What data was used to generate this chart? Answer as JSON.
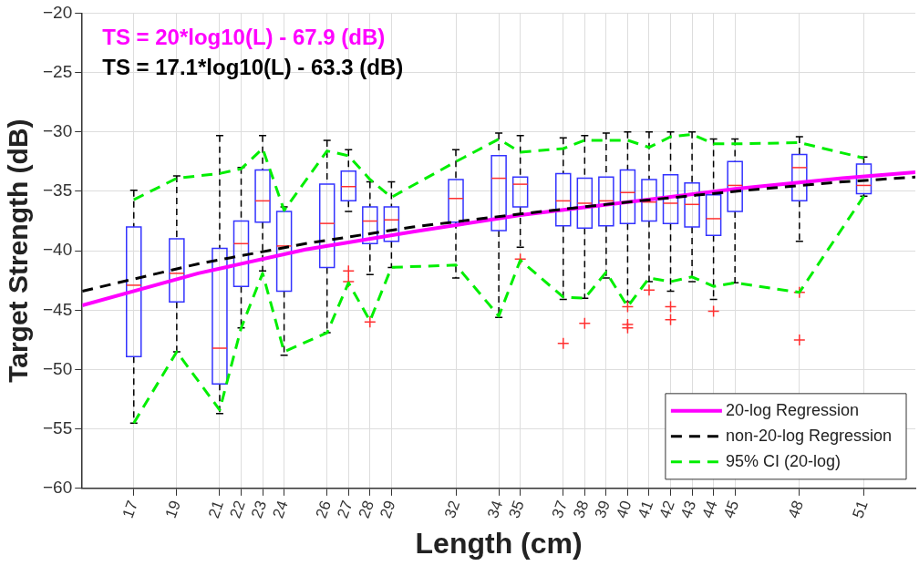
{
  "chart_data": {
    "type": "box",
    "xlabel": "Length (cm)",
    "ylabel": "Target Strength (dB)",
    "x": [
      17,
      19,
      21,
      22,
      23,
      24,
      26,
      27,
      28,
      29,
      32,
      34,
      35,
      37,
      38,
      39,
      40,
      41,
      42,
      43,
      44,
      45,
      48,
      51
    ],
    "boxes": [
      {
        "low": -54.5,
        "q1": -48.9,
        "median": -42.9,
        "q3": -38.0,
        "high": -34.9
      },
      {
        "low": -48.5,
        "q1": -44.3,
        "median": -41.9,
        "q3": -39.0,
        "high": -33.7
      },
      {
        "low": -53.7,
        "q1": -51.2,
        "median": -48.2,
        "q3": -39.8,
        "high": -30.3
      },
      {
        "low": -46.5,
        "q1": -43.0,
        "median": -39.4,
        "q3": -37.5,
        "high": -33.0
      },
      {
        "low": -41.7,
        "q1": -37.6,
        "median": -35.8,
        "q3": -33.2,
        "high": -30.3
      },
      {
        "low": -48.8,
        "q1": -43.4,
        "median": -39.6,
        "q3": -36.7,
        "high": -36.3
      },
      {
        "low": -46.9,
        "q1": -41.4,
        "median": -37.7,
        "q3": -34.4,
        "high": -30.7
      },
      {
        "low": -36.7,
        "q1": -35.8,
        "median": -34.6,
        "q3": -33.3,
        "high": -31.5,
        "outliers": [
          -41.7,
          -42.6
        ]
      },
      {
        "low": -42.0,
        "q1": -39.4,
        "median": -37.5,
        "q3": -36.3,
        "high": -34.2,
        "outliers": [
          -46.0
        ]
      },
      {
        "low": -41.4,
        "q1": -39.2,
        "median": -37.4,
        "q3": -36.3,
        "high": -34.2
      },
      {
        "low": -42.3,
        "q1": -37.6,
        "median": -35.6,
        "q3": -34.0,
        "high": -31.5
      },
      {
        "low": -45.6,
        "q1": -38.3,
        "median": -33.9,
        "q3": -32.0,
        "high": -30.1
      },
      {
        "low": -39.7,
        "q1": -36.3,
        "median": -34.4,
        "q3": -33.8,
        "high": -30.3,
        "outliers": [
          -40.7
        ]
      },
      {
        "low": -44.1,
        "q1": -37.9,
        "median": -35.8,
        "q3": -33.5,
        "high": -30.5,
        "outliers": [
          -47.8
        ]
      },
      {
        "low": -44.0,
        "q1": -38.1,
        "median": -36.0,
        "q3": -33.9,
        "high": -30.3,
        "outliers": [
          -46.1
        ]
      },
      {
        "low": -42.3,
        "q1": -37.9,
        "median": -35.8,
        "q3": -33.8,
        "high": -30.1
      },
      {
        "low": -44.3,
        "q1": -37.7,
        "median": -35.1,
        "q3": -33.2,
        "high": -30.0,
        "outliers": [
          -44.7,
          -46.2,
          -46.5
        ]
      },
      {
        "low": -42.6,
        "q1": -37.5,
        "median": -35.9,
        "q3": -34.0,
        "high": -30.0,
        "outliers": [
          -43.3
        ]
      },
      {
        "low": -43.4,
        "q1": -37.7,
        "median": -36.0,
        "q3": -33.6,
        "high": -30.0,
        "outliers": [
          -44.7,
          -45.8
        ]
      },
      {
        "low": -42.6,
        "q1": -38.0,
        "median": -36.1,
        "q3": -34.3,
        "high": -30.0
      },
      {
        "low": -44.1,
        "q1": -38.7,
        "median": -37.3,
        "q3": -35.3,
        "high": -30.6,
        "outliers": [
          -45.1
        ]
      },
      {
        "low": -42.7,
        "q1": -36.7,
        "median": -34.5,
        "q3": -32.5,
        "high": -30.6
      },
      {
        "low": -39.2,
        "q1": -35.8,
        "median": -33.0,
        "q3": -31.9,
        "high": -30.4,
        "outliers": [
          -43.5,
          -47.5
        ]
      },
      {
        "low": -35.4,
        "q1": -35.2,
        "median": -34.5,
        "q3": -32.7,
        "high": -32.1
      }
    ],
    "series": [
      {
        "name": "20-log Regression",
        "type": "line",
        "color": "#ff00ff",
        "line_style": "solid",
        "x": [
          14.6,
          20,
          25,
          30,
          35,
          40,
          45,
          50,
          53.4
        ],
        "values": [
          -44.6,
          -41.9,
          -39.9,
          -38.4,
          -37.0,
          -35.9,
          -34.8,
          -33.9,
          -33.4
        ]
      },
      {
        "name": "non-20-log Regression",
        "type": "line",
        "color": "#000000",
        "line_style": "dashed",
        "x": [
          14.6,
          20,
          25,
          30,
          35,
          40,
          45,
          50,
          53.4
        ],
        "values": [
          -43.4,
          -41.1,
          -39.4,
          -38.0,
          -36.9,
          -35.9,
          -35.0,
          -34.2,
          -33.8
        ]
      },
      {
        "name": "95% CI (20-log)",
        "type": "line",
        "color": "#00ee00",
        "line_style": "dashed",
        "x": [
          17,
          19,
          21,
          22,
          23,
          24,
          26,
          27,
          28,
          29,
          32,
          34,
          35,
          37,
          38,
          39,
          40,
          41,
          42,
          43,
          44,
          45,
          48,
          51
        ],
        "values": [
          -35.7,
          -33.9,
          -33.5,
          -33.1,
          -31.4,
          -36.6,
          -31.6,
          -32.0,
          -34.0,
          -35.5,
          -32.5,
          -30.6,
          -31.7,
          -31.4,
          -30.7,
          -30.7,
          -30.7,
          -31.3,
          -30.4,
          -30.2,
          -31.0,
          -31.0,
          -30.9,
          -32.2
        ]
      },
      {
        "type": "line",
        "color": "#00ee00",
        "line_style": "dashed",
        "x": [
          17,
          19,
          21,
          22,
          23,
          24,
          26,
          27,
          28,
          29,
          32,
          34,
          35,
          37,
          38,
          39,
          40,
          41,
          42,
          43,
          44,
          45,
          48,
          51
        ],
        "values": [
          -54.5,
          -48.5,
          -53.4,
          -46.5,
          -41.9,
          -48.5,
          -46.9,
          -42.7,
          -45.9,
          -41.4,
          -41.2,
          -45.5,
          -40.8,
          -43.9,
          -44.0,
          -41.8,
          -44.7,
          -42.3,
          -42.6,
          -42.2,
          -43.0,
          -42.7,
          -43.5,
          -35.4
        ]
      }
    ],
    "annotations": [
      "TS = 20*log10(L) - 67.9 (dB)",
      "TS = 17.1*log10(L) - 63.3 (dB)"
    ],
    "xlim": [
      14.6,
      53.4
    ],
    "xticks": [
      17,
      19,
      21,
      22,
      23,
      24,
      26,
      27,
      28,
      29,
      32,
      34,
      35,
      37,
      38,
      39,
      40,
      41,
      42,
      43,
      44,
      45,
      48,
      51
    ],
    "ylim": [
      -60,
      -20
    ],
    "yticks": [
      -60,
      -55,
      -50,
      -45,
      -40,
      -35,
      -30,
      -25,
      -20
    ],
    "grid": true,
    "legend": "bottom right"
  }
}
